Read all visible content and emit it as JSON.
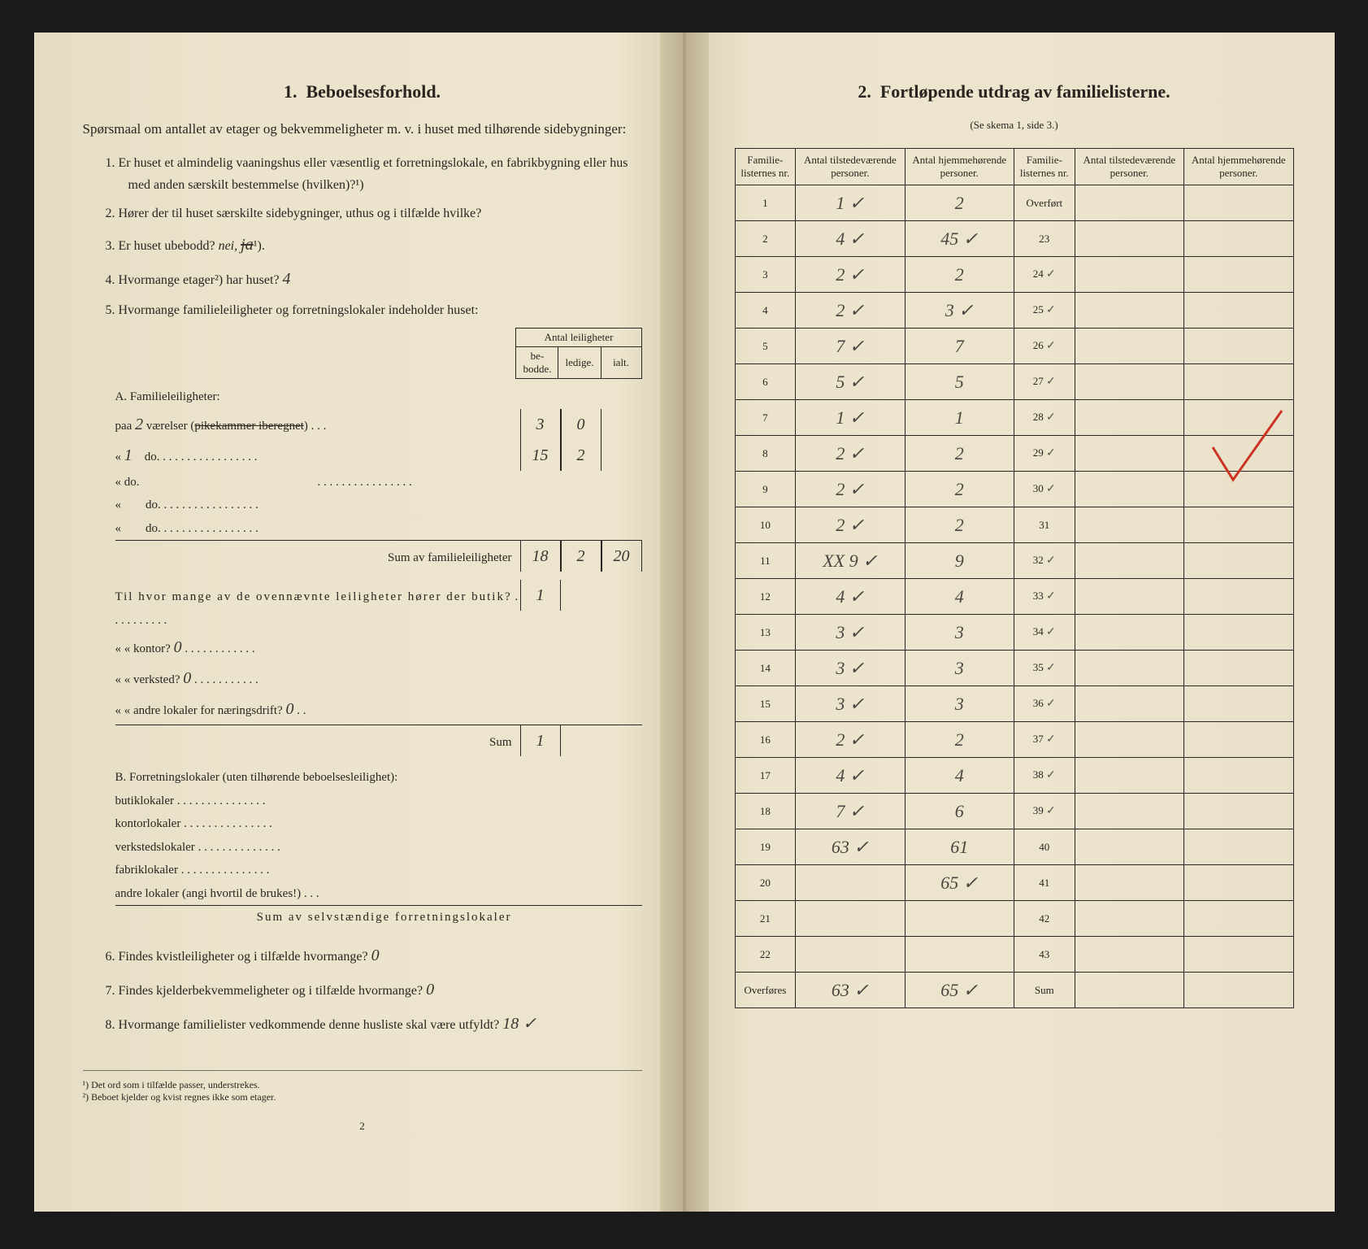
{
  "left": {
    "heading_num": "1.",
    "heading": "Beboelsesforhold.",
    "intro": "Spørsmaal om antallet av etager og bekvemmeligheter m. v. i huset med tilhørende sidebygninger:",
    "q1": "Er huset et almindelig vaaningshus eller væsentlig et forretningslokale, en fabrikbygning eller hus med anden særskilt bestemmelse (hvilken)?¹)",
    "q2": "Hører der til huset særskilte sidebygninger, uthus og i tilfælde hvilke?",
    "q3_label": "Er huset ubebodd?",
    "q3_answer": "nei,",
    "q3_struck": "ja",
    "q3_sup": "¹).",
    "q4_label": "Hvormange etager²) har huset?",
    "q4_answer": "4",
    "q5": "Hvormange familieleiligheter og forretningslokaler indeholder huset:",
    "mini_headers": {
      "h0": "Antal leiligheter",
      "h1": "be-\nbodde.",
      "h2": "ledige.",
      "h3": "ialt."
    },
    "sectionA_title": "A. Familieleiligheter:",
    "rowA1_prefix": "paa",
    "rowA1_hw": "2",
    "rowA1_mid": "værelser (",
    "rowA1_struck": "pikekammer iberegnet",
    "rowA1_suffix": ")",
    "rowA1_c1": "3",
    "rowA1_c2": "0",
    "rowA1_c3": "",
    "rowA2_prefix": "«",
    "rowA2_hw": "1",
    "rowA2_mid": "do.",
    "rowA2_c1": "15",
    "rowA2_c2": "2",
    "rowA2_c3": "",
    "rowA_blank": "«        do.",
    "sumA_label": "Sum av familieleiligheter",
    "sumA_c1": "18",
    "sumA_c2": "2",
    "sumA_c3": "20",
    "butik_label": "Til hvor mange av de ovennævnte leiligheter hører der butik?",
    "butik_val": "1",
    "kontor_label": "«  «  kontor?",
    "kontor_val": "0",
    "verksted_label": "«  «  verksted?",
    "verksted_val": "0",
    "andre_label": "«  «  andre lokaler for næringsdrift?",
    "andre_val": "0",
    "sum_small_label": "Sum",
    "sum_small_val": "1",
    "sectionB_title": "B. Forretningslokaler (uten tilhørende beboelsesleilighet):",
    "b1": "butiklokaler",
    "b2": "kontorlokaler",
    "b3": "verkstedslokaler",
    "b4": "fabriklokaler",
    "b5": "andre lokaler (angi hvortil de brukes!)",
    "sumB_label": "Sum av selvstændige forretningslokaler",
    "q6_label": "Findes kvistleiligheter og i tilfælde hvormange?",
    "q6_val": "0",
    "q7_label": "Findes kjelderbekvemmeligheter og i tilfælde hvormange?",
    "q7_val": "0",
    "q8_label": "Hvormange familielister vedkommende denne husliste skal være utfyldt?",
    "q8_val": "18 ✓",
    "fn1": "¹) Det ord som i tilfælde passer, understrekes.",
    "fn2": "²) Beboet kjelder og kvist regnes ikke som etager.",
    "page_num": "2"
  },
  "right": {
    "heading_num": "2.",
    "heading": "Fortløpende utdrag av familielisterne.",
    "subtitle": "(Se skema 1, side 3.)",
    "headers": {
      "h1": "Familie-\nlisternes\nnr.",
      "h2": "Antal\ntilstedeværende\npersoner.",
      "h3": "Antal\nhjemmehørende\npersoner.",
      "h4": "Familie-\nlisternes\nnr.",
      "h5": "Antal\ntilstedeværende\npersoner.",
      "h6": "Antal\nhjemmehørende\npersoner."
    },
    "overfort": "Overført",
    "overfores": "Overføres",
    "sum_label": "Sum",
    "rows": [
      {
        "n1": "1",
        "v1": "1 ✓",
        "v2": "2",
        "n2": "",
        "r2": "Overført"
      },
      {
        "n1": "2",
        "v1": "4 ✓",
        "v2": "45 ✓",
        "n2": "23",
        "r2": ""
      },
      {
        "n1": "3",
        "v1": "2 ✓",
        "v2": "2",
        "n2": "24",
        "r2": "✓"
      },
      {
        "n1": "4",
        "v1": "2 ✓",
        "v2": "3 ✓",
        "n2": "25",
        "r2": "✓"
      },
      {
        "n1": "5",
        "v1": "7 ✓",
        "v2": "7",
        "n2": "26",
        "r2": "✓"
      },
      {
        "n1": "6",
        "v1": "5 ✓",
        "v2": "5",
        "n2": "27",
        "r2": "✓"
      },
      {
        "n1": "7",
        "v1": "1 ✓",
        "v2": "1",
        "n2": "28",
        "r2": "✓"
      },
      {
        "n1": "8",
        "v1": "2 ✓",
        "v2": "2",
        "n2": "29",
        "r2": "✓"
      },
      {
        "n1": "9",
        "v1": "2 ✓",
        "v2": "2",
        "n2": "30",
        "r2": "✓"
      },
      {
        "n1": "10",
        "v1": "2 ✓",
        "v2": "2",
        "n2": "31",
        "r2": ""
      },
      {
        "n1": "11",
        "v1": "XX 9 ✓",
        "v2": "9",
        "n2": "32",
        "r2": "✓"
      },
      {
        "n1": "12",
        "v1": "4 ✓",
        "v2": "4",
        "n2": "33",
        "r2": "✓"
      },
      {
        "n1": "13",
        "v1": "3 ✓",
        "v2": "3",
        "n2": "34",
        "r2": "✓"
      },
      {
        "n1": "14",
        "v1": "3 ✓",
        "v2": "3",
        "n2": "35",
        "r2": "✓"
      },
      {
        "n1": "15",
        "v1": "3 ✓",
        "v2": "3",
        "n2": "36",
        "r2": "✓"
      },
      {
        "n1": "16",
        "v1": "2 ✓",
        "v2": "2",
        "n2": "37",
        "r2": "✓"
      },
      {
        "n1": "17",
        "v1": "4 ✓",
        "v2": "4",
        "n2": "38",
        "r2": "✓"
      },
      {
        "n1": "18",
        "v1": "7 ✓",
        "v2": "6",
        "n2": "39",
        "r2": "✓"
      },
      {
        "n1": "19",
        "v1": "63 ✓",
        "v2": "61",
        "n2": "40",
        "r2": ""
      },
      {
        "n1": "20",
        "v1": "",
        "v2": "65 ✓",
        "n2": "41",
        "r2": ""
      },
      {
        "n1": "21",
        "v1": "",
        "v2": "",
        "n2": "42",
        "r2": ""
      },
      {
        "n1": "22",
        "v1": "",
        "v2": "",
        "n2": "43",
        "r2": ""
      }
    ],
    "footer_v1": "63 ✓",
    "footer_v2": "65 ✓",
    "red_mark_color": "#cc3322"
  }
}
